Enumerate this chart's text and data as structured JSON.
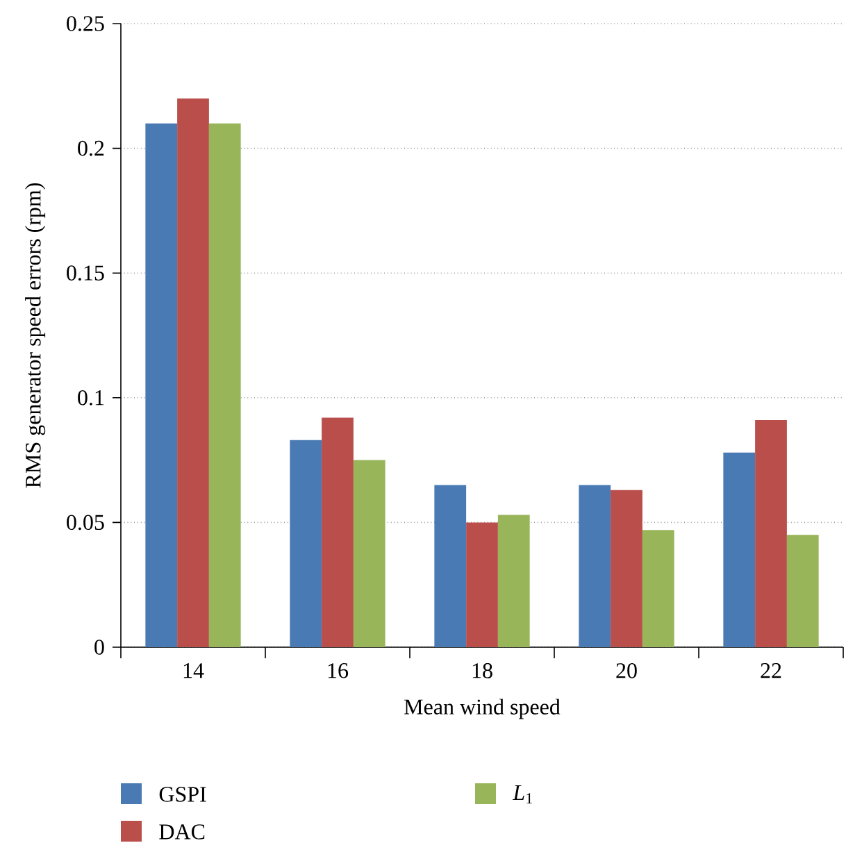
{
  "chart_data": {
    "type": "bar",
    "xlabel": "Mean wind speed",
    "ylabel": "RMS generator speed errors (rpm)",
    "categories": [
      "14",
      "16",
      "18",
      "20",
      "22"
    ],
    "series": [
      {
        "name": "GSPI",
        "color": "#4a7ab4",
        "values": [
          0.21,
          0.083,
          0.065,
          0.065,
          0.078
        ]
      },
      {
        "name": "DAC",
        "color": "#b94e4b",
        "values": [
          0.22,
          0.092,
          0.05,
          0.063,
          0.091
        ]
      },
      {
        "name": "*L*$_{1}$",
        "color": "#98b55a",
        "values": [
          0.21,
          0.075,
          0.053,
          0.047,
          0.045
        ]
      }
    ],
    "ylim": [
      0,
      0.25
    ],
    "yticks": [
      0,
      0.05,
      0.1,
      0.15,
      0.2,
      0.25
    ],
    "grid": "y",
    "legend": "bottom"
  }
}
